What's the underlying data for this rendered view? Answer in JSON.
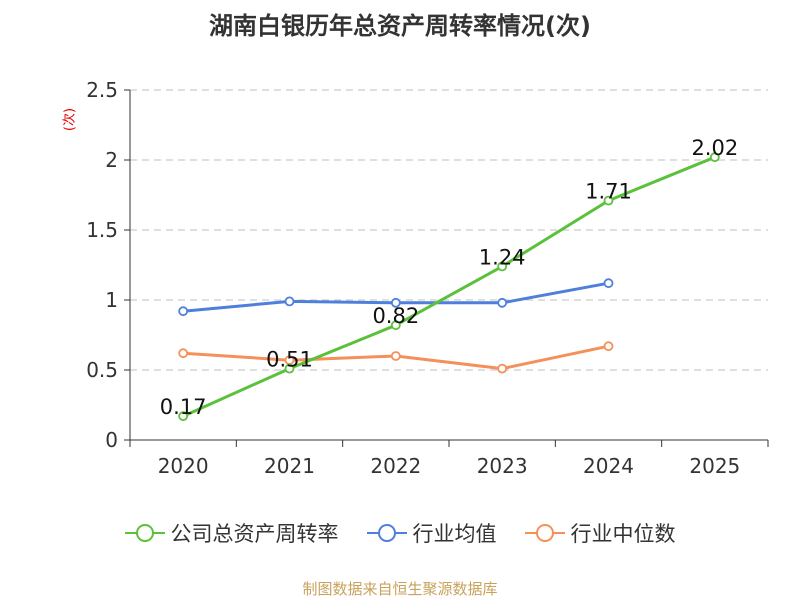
{
  "title": "湖南白银历年总资产周转率情况(次)",
  "unit_label": "(次)",
  "source": "制图数据来自恒生聚源数据库",
  "chart_data": {
    "type": "line",
    "categories": [
      "2020",
      "2021",
      "2022",
      "2023",
      "2024",
      "2025"
    ],
    "ylim": [
      0,
      2.5
    ],
    "yticks": [
      "0",
      "0.5",
      "1",
      "1.5",
      "2",
      "2.5"
    ],
    "ytick_values": [
      0,
      0.5,
      1,
      1.5,
      2,
      2.5
    ],
    "grid": true,
    "legend_position": "bottom",
    "series": [
      {
        "name": "公司总资产周转率",
        "color": "#5cc13a",
        "values": [
          0.17,
          0.51,
          0.82,
          1.24,
          1.71,
          2.02
        ],
        "labels": [
          "0.17",
          "0.51",
          "0.82",
          "1.24",
          "1.71",
          "2.02"
        ]
      },
      {
        "name": "行业均值",
        "color": "#4f7fdc",
        "values": [
          0.92,
          0.99,
          0.98,
          0.98,
          1.12,
          null
        ]
      },
      {
        "name": "行业中位数",
        "color": "#f5905a",
        "values": [
          0.62,
          0.57,
          0.6,
          0.51,
          0.67,
          null
        ]
      }
    ]
  }
}
